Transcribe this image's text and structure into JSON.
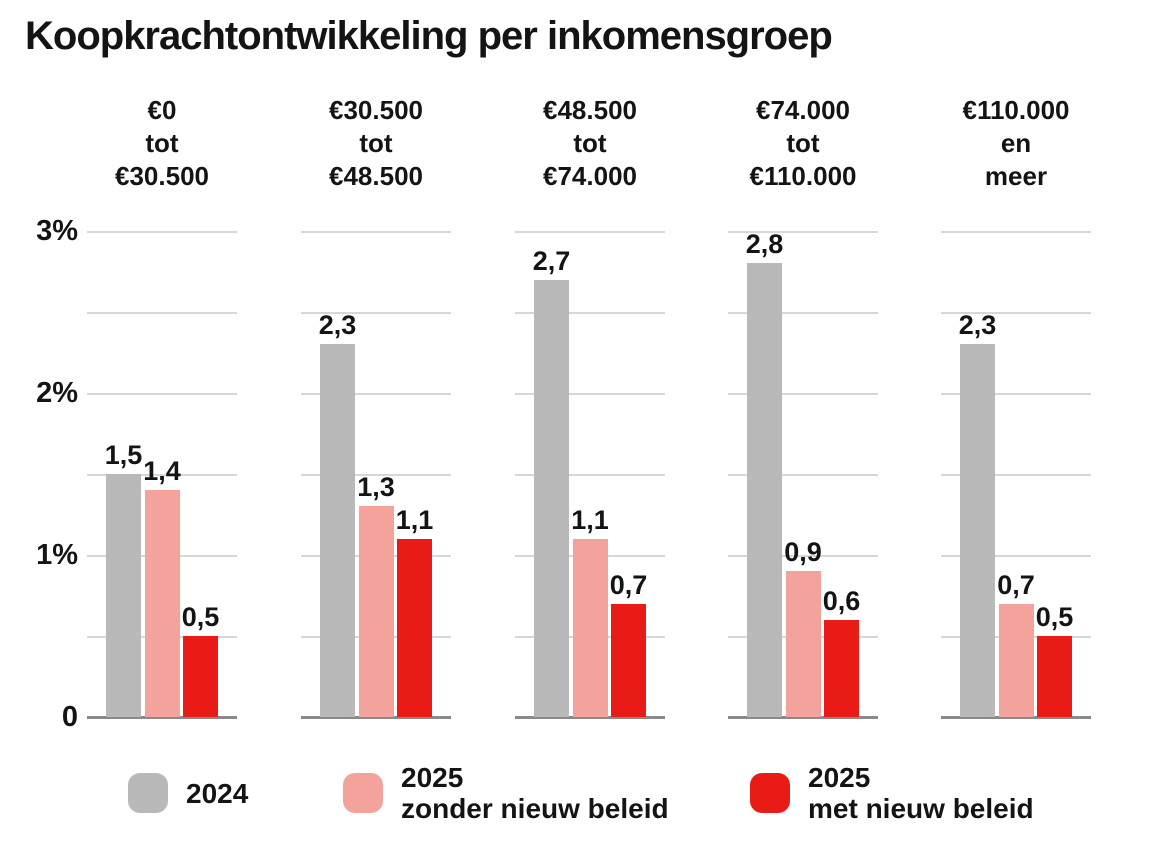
{
  "chart_data": {
    "type": "bar",
    "title": "Koopkrachtontwikkeling per inkomensgroep",
    "unit": "%",
    "ylim": [
      0,
      3.2
    ],
    "grid": true,
    "gridline_step": 0.5,
    "gridline_values": [
      0.5,
      1,
      1.5,
      2,
      2.5,
      3
    ],
    "legend_position": "bottom",
    "y_ticks": [
      {
        "label": "3%",
        "value": 3
      },
      {
        "label": "2%",
        "value": 2
      },
      {
        "label": "1%",
        "value": 1
      },
      {
        "label": "0",
        "value": 0
      }
    ],
    "categories": [
      {
        "lines": [
          "€0",
          "tot",
          "€30.500"
        ]
      },
      {
        "lines": [
          "€30.500",
          "tot",
          "€48.500"
        ]
      },
      {
        "lines": [
          "€48.500",
          "tot",
          "€74.000"
        ]
      },
      {
        "lines": [
          "€74.000",
          "tot",
          "€110.000"
        ]
      },
      {
        "lines": [
          "€110.000",
          "en",
          "meer"
        ]
      }
    ],
    "series": [
      {
        "name": "2024",
        "legend_lines": [
          "2024"
        ],
        "color": "#b9b9b9",
        "values": [
          1.5,
          2.3,
          2.7,
          2.8,
          2.3
        ],
        "value_labels": [
          "1,5",
          "2,3",
          "2,7",
          "2,8",
          "2,3"
        ]
      },
      {
        "name": "2025 zonder nieuw beleid",
        "legend_lines": [
          "2025",
          "zonder nieuw beleid"
        ],
        "color": "#f4a39c",
        "values": [
          1.4,
          1.3,
          1.1,
          0.9,
          0.7
        ],
        "value_labels": [
          "1,4",
          "1,3",
          "1,1",
          "0,9",
          "0,7"
        ]
      },
      {
        "name": "2025 met nieuw beleid",
        "legend_lines": [
          "2025",
          "met nieuw beleid"
        ],
        "color": "#e91b16",
        "values": [
          0.5,
          1.1,
          0.7,
          0.6,
          0.5
        ],
        "value_labels": [
          "0,5",
          "1,1",
          "0,7",
          "0,6",
          "0,5"
        ]
      }
    ],
    "colors": {
      "background": "#ffffff",
      "text": "#141414",
      "gridline": "#d7d7d7",
      "baseline": "#8a8a8a"
    }
  }
}
